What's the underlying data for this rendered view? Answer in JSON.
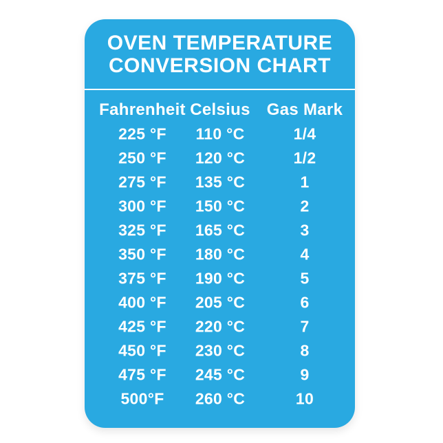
{
  "page": {
    "background": "#ffffff"
  },
  "card": {
    "background": "#29a9e1",
    "text_color": "#ffffff",
    "divider_color": "#ffffff"
  },
  "title": {
    "line1": "OVEN TEMPERATURE",
    "line2": "CONVERSION CHART"
  },
  "chart_data": {
    "type": "table",
    "title": "OVEN TEMPERATURE CONVERSION CHART",
    "columns": [
      "Fahrenheit",
      "Celsius",
      "Gas Mark"
    ],
    "rows": [
      [
        "225 °F",
        "110 °C",
        "1/4"
      ],
      [
        "250 °F",
        "120 °C",
        "1/2"
      ],
      [
        "275 °F",
        "135 °C",
        "1"
      ],
      [
        "300 °F",
        "150 °C",
        "2"
      ],
      [
        "325 °F",
        "165 °C",
        "3"
      ],
      [
        "350 °F",
        "180 °C",
        "4"
      ],
      [
        "375 °F",
        "190 °C",
        "5"
      ],
      [
        "400 °F",
        "205 °C",
        "6"
      ],
      [
        "425 °F",
        "220 °C",
        "7"
      ],
      [
        "450 °F",
        "230 °C",
        "8"
      ],
      [
        "475 °F",
        "245 °C",
        "9"
      ],
      [
        "500°F",
        "260 °C",
        "10"
      ]
    ]
  }
}
